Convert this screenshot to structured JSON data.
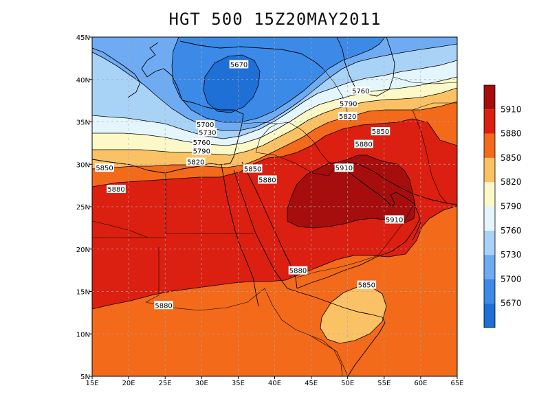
{
  "title": "HGT 500 15Z20MAY2011",
  "chart_data": {
    "type": "heatmap",
    "variable": "HGT 500",
    "time": "15Z20MAY2011",
    "lon_range": [
      15,
      65
    ],
    "lat_range": [
      5,
      45
    ],
    "xticks": [
      "15E",
      "20E",
      "25E",
      "30E",
      "35E",
      "40E",
      "45E",
      "50E",
      "55E",
      "60E",
      "65E"
    ],
    "yticks": [
      "5N",
      "10N",
      "15N",
      "20N",
      "25N",
      "30N",
      "35N",
      "40N",
      "45N"
    ],
    "grid": true,
    "legend_position": "right",
    "colorbar": {
      "levels": [
        5670,
        5700,
        5730,
        5760,
        5790,
        5820,
        5850,
        5880,
        5910
      ],
      "colors": [
        "#1e6fd6",
        "#3c8ae8",
        "#6fabf2",
        "#a9d2f7",
        "#e4f6fc",
        "#fcf8c8",
        "#fbc265",
        "#f26a1a",
        "#db1f10",
        "#a60d0d"
      ]
    },
    "contour_labels": [
      {
        "value": "5670",
        "lon": 35.1,
        "lat": 41.8
      },
      {
        "value": "5760",
        "lon": 51.8,
        "lat": 38.7
      },
      {
        "value": "5790",
        "lon": 50.1,
        "lat": 37.2
      },
      {
        "value": "5820",
        "lon": 50.0,
        "lat": 35.7
      },
      {
        "value": "5850",
        "lon": 54.5,
        "lat": 33.9
      },
      {
        "value": "5880",
        "lon": 52.2,
        "lat": 32.4
      },
      {
        "value": "5910",
        "lon": 49.5,
        "lat": 29.6
      },
      {
        "value": "5700",
        "lon": 30.5,
        "lat": 34.7
      },
      {
        "value": "5730",
        "lon": 30.8,
        "lat": 33.8
      },
      {
        "value": "5760",
        "lon": 30.0,
        "lat": 32.6
      },
      {
        "value": "5790",
        "lon": 30.0,
        "lat": 31.6
      },
      {
        "value": "5820",
        "lon": 29.2,
        "lat": 30.3
      },
      {
        "value": "5850",
        "lon": 16.7,
        "lat": 29.6
      },
      {
        "value": "5850",
        "lon": 37.0,
        "lat": 29.5
      },
      {
        "value": "5880",
        "lon": 18.3,
        "lat": 27.1
      },
      {
        "value": "5880",
        "lon": 39.0,
        "lat": 28.2
      },
      {
        "value": "5910",
        "lon": 56.4,
        "lat": 23.5
      },
      {
        "value": "5880",
        "lon": 43.2,
        "lat": 17.5
      },
      {
        "value": "5880",
        "lon": 24.8,
        "lat": 13.4
      },
      {
        "value": "5850",
        "lon": 52.6,
        "lat": 15.8
      }
    ]
  }
}
